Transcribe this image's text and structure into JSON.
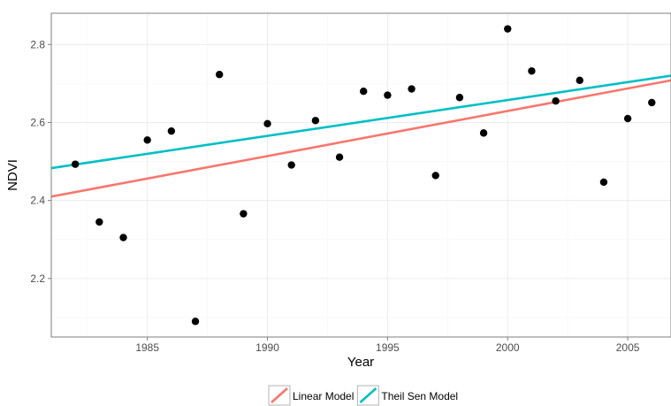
{
  "chart_data": {
    "type": "scatter",
    "title": "",
    "xlabel": "Year",
    "ylabel": "NDVI",
    "xlim": [
      1981,
      2006.8
    ],
    "ylim": [
      2.05,
      2.88
    ],
    "xticks": [
      1985,
      1990,
      1995,
      2000,
      2005
    ],
    "yticks": [
      2.2,
      2.4,
      2.6,
      2.8
    ],
    "grid": true,
    "points": [
      {
        "x": 1982,
        "y": 2.493
      },
      {
        "x": 1983,
        "y": 2.345
      },
      {
        "x": 1984,
        "y": 2.305
      },
      {
        "x": 1985,
        "y": 2.555
      },
      {
        "x": 1986,
        "y": 2.578
      },
      {
        "x": 1987,
        "y": 2.09
      },
      {
        "x": 1988,
        "y": 2.723
      },
      {
        "x": 1989,
        "y": 2.366
      },
      {
        "x": 1990,
        "y": 2.597
      },
      {
        "x": 1991,
        "y": 2.491
      },
      {
        "x": 1992,
        "y": 2.605
      },
      {
        "x": 1993,
        "y": 2.511
      },
      {
        "x": 1994,
        "y": 2.68
      },
      {
        "x": 1995,
        "y": 2.67
      },
      {
        "x": 1996,
        "y": 2.686
      },
      {
        "x": 1997,
        "y": 2.464
      },
      {
        "x": 1998,
        "y": 2.664
      },
      {
        "x": 1999,
        "y": 2.573
      },
      {
        "x": 2000,
        "y": 2.84
      },
      {
        "x": 2001,
        "y": 2.732
      },
      {
        "x": 2002,
        "y": 2.655
      },
      {
        "x": 2003,
        "y": 2.708
      },
      {
        "x": 2004,
        "y": 2.447
      },
      {
        "x": 2005,
        "y": 2.61
      },
      {
        "x": 2006,
        "y": 2.651
      }
    ],
    "lines": [
      {
        "name": "Linear Model",
        "color": "#f8766d",
        "x": [
          1981,
          2006.8
        ],
        "y": [
          2.41,
          2.708
        ]
      },
      {
        "name": "Theil Sen Model",
        "color": "#00bfc4",
        "x": [
          1981,
          2006.8
        ],
        "y": [
          2.483,
          2.72
        ]
      }
    ],
    "legend": {
      "position": "bottom",
      "entries": [
        "Linear Model",
        "Theil Sen Model"
      ]
    }
  }
}
